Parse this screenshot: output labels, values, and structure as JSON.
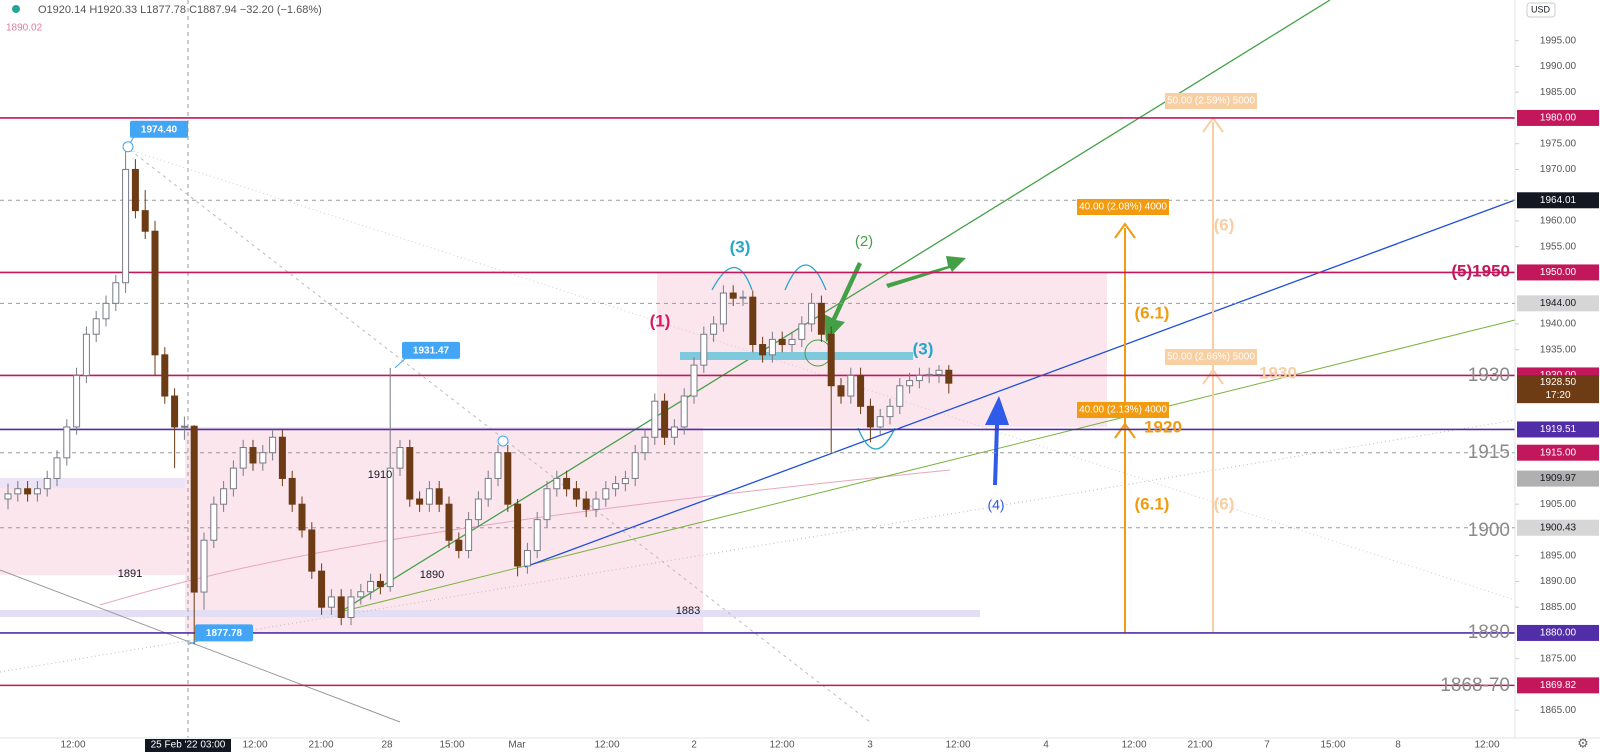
{
  "chart_data": {
    "type": "candlestick",
    "header": {
      "ohlc": "O1920.14 H1920.33 L1877.78 C1887.94 −32.20 (−1.68%)",
      "ma": "1890.02",
      "currency": "USD"
    },
    "ylim": [
      1859.6,
      2002.9
    ],
    "yticks": [
      {
        "value": 1995,
        "label": "1995.00"
      },
      {
        "value": 1990,
        "label": "1990.00"
      },
      {
        "value": 1985,
        "label": "1985.00"
      },
      {
        "value": 1975,
        "label": "1975.00"
      },
      {
        "value": 1970,
        "label": "1970.00"
      },
      {
        "value": 1960,
        "label": "1960.00"
      },
      {
        "value": 1955,
        "label": "1955.00"
      },
      {
        "value": 1940,
        "label": "1940.00"
      },
      {
        "value": 1935,
        "label": "1935.00"
      },
      {
        "value": 1905,
        "label": "1905.00"
      },
      {
        "value": 1895,
        "label": "1895.00"
      },
      {
        "value": 1890,
        "label": "1890.00"
      },
      {
        "value": 1885,
        "label": "1885.00"
      },
      {
        "value": 1875,
        "label": "1875.00"
      },
      {
        "value": 1865,
        "label": "1865.00"
      }
    ],
    "up_color": "#ffffff",
    "down_color": "#6d3b14",
    "ohlc": [
      [
        1906,
        1909,
        1904,
        1907
      ],
      [
        1907,
        1909.5,
        1905.5,
        1908
      ],
      [
        1908,
        1909.5,
        1905.5,
        1907
      ],
      [
        1907,
        1909.5,
        1905.5,
        1908
      ],
      [
        1908,
        1911.5,
        1906.5,
        1910
      ],
      [
        1910,
        1915.5,
        1908.5,
        1914
      ],
      [
        1914,
        1921.5,
        1912.5,
        1920
      ],
      [
        1920,
        1931.5,
        1918.5,
        1930
      ],
      [
        1930,
        1939.5,
        1928.5,
        1938
      ],
      [
        1938,
        1942.5,
        1936.5,
        1941
      ],
      [
        1941,
        1945.5,
        1939.5,
        1944
      ],
      [
        1944,
        1949.5,
        1942.5,
        1948
      ],
      [
        1948,
        1974.4,
        1946,
        1970
      ],
      [
        1970,
        1972,
        1960.5,
        1962
      ],
      [
        1962,
        1966,
        1956.5,
        1958
      ],
      [
        1958,
        1960,
        1930,
        1934
      ],
      [
        1934,
        1935.5,
        1924.5,
        1926
      ],
      [
        1926,
        1927.5,
        1912,
        1920
      ],
      [
        1920,
        1922,
        1917.5,
        1920.14
      ],
      [
        1920.14,
        1920.33,
        1877.78,
        1887.94
      ],
      [
        1887.94,
        1899.5,
        1884.5,
        1898
      ],
      [
        1898,
        1906.5,
        1896.5,
        1905
      ],
      [
        1905,
        1909.5,
        1903.5,
        1908
      ],
      [
        1908,
        1913.5,
        1906.5,
        1912
      ],
      [
        1912,
        1917.5,
        1910.5,
        1916
      ],
      [
        1916,
        1917.5,
        1911.5,
        1913
      ],
      [
        1913,
        1916.5,
        1911.5,
        1915
      ],
      [
        1915,
        1919.5,
        1913.5,
        1918
      ],
      [
        1918,
        1919.5,
        1908.5,
        1910
      ],
      [
        1910,
        1911.5,
        1903.5,
        1905
      ],
      [
        1905,
        1906.5,
        1898.5,
        1900
      ],
      [
        1900,
        1901.5,
        1890.5,
        1892
      ],
      [
        1892,
        1893.5,
        1883.5,
        1885
      ],
      [
        1885,
        1888.5,
        1883.5,
        1887
      ],
      [
        1887,
        1888.5,
        1881.5,
        1883
      ],
      [
        1883,
        1888.5,
        1881.5,
        1887
      ],
      [
        1887,
        1889.5,
        1885.5,
        1888
      ],
      [
        1888,
        1891.5,
        1886.5,
        1890
      ],
      [
        1890,
        1891.5,
        1887.5,
        1889
      ],
      [
        1889,
        1931.47,
        1888,
        1912
      ],
      [
        1912,
        1917.5,
        1910.5,
        1916
      ],
      [
        1916,
        1917.5,
        1904.5,
        1906
      ],
      [
        1906,
        1907.5,
        1903.5,
        1905
      ],
      [
        1905,
        1909.5,
        1903.5,
        1908
      ],
      [
        1908,
        1909.5,
        1903.5,
        1905
      ],
      [
        1905,
        1906.5,
        1896.5,
        1898
      ],
      [
        1898,
        1899.5,
        1894.5,
        1896
      ],
      [
        1896,
        1903.5,
        1894.5,
        1902
      ],
      [
        1902,
        1907.5,
        1900.5,
        1906
      ],
      [
        1906,
        1911.5,
        1904.5,
        1910
      ],
      [
        1910,
        1916.5,
        1908.5,
        1915
      ],
      [
        1915,
        1916.5,
        1903.5,
        1905
      ],
      [
        1905,
        1906,
        1891,
        1893
      ],
      [
        1893,
        1897.5,
        1891.5,
        1896
      ],
      [
        1896,
        1903.5,
        1894.5,
        1902
      ],
      [
        1902,
        1909.5,
        1900.5,
        1908
      ],
      [
        1908,
        1911.5,
        1906.5,
        1910
      ],
      [
        1910,
        1911.5,
        1906.5,
        1908
      ],
      [
        1908,
        1909.5,
        1904.5,
        1906
      ],
      [
        1906,
        1907.5,
        1902.5,
        1904
      ],
      [
        1904,
        1907.5,
        1902.5,
        1906
      ],
      [
        1906,
        1909.5,
        1904.5,
        1908
      ],
      [
        1908,
        1910.5,
        1906.5,
        1909
      ],
      [
        1909,
        1911.5,
        1907.5,
        1910
      ],
      [
        1910,
        1916.5,
        1908.5,
        1915
      ],
      [
        1915,
        1919.5,
        1913.5,
        1918
      ],
      [
        1918,
        1926.5,
        1916.5,
        1925
      ],
      [
        1925,
        1926.5,
        1916.5,
        1918
      ],
      [
        1918,
        1921.5,
        1916.5,
        1920
      ],
      [
        1920,
        1927.5,
        1918.5,
        1926
      ],
      [
        1926,
        1933.5,
        1924.5,
        1932
      ],
      [
        1932,
        1939.5,
        1930.5,
        1938
      ],
      [
        1938,
        1941.5,
        1936.5,
        1940
      ],
      [
        1940,
        1947.5,
        1938.5,
        1946
      ],
      [
        1946,
        1947.5,
        1943.5,
        1945
      ],
      [
        1945,
        1946.5,
        1943.5,
        1945.2
      ],
      [
        1945.2,
        1946.5,
        1934.5,
        1936
      ],
      [
        1936,
        1937.5,
        1932.5,
        1934
      ],
      [
        1934,
        1938.5,
        1932.5,
        1937
      ],
      [
        1937,
        1938.5,
        1934.5,
        1936
      ],
      [
        1936,
        1938.5,
        1934.5,
        1937
      ],
      [
        1937,
        1941.5,
        1935.5,
        1940
      ],
      [
        1940,
        1946,
        1938.5,
        1944
      ],
      [
        1944,
        1945.5,
        1936.5,
        1938
      ],
      [
        1938,
        1939.5,
        1915,
        1928
      ],
      [
        1928,
        1929.5,
        1924.5,
        1926
      ],
      [
        1926,
        1931.5,
        1924.5,
        1930
      ],
      [
        1930,
        1931.5,
        1922.5,
        1924
      ],
      [
        1924,
        1925.5,
        1917,
        1920
      ],
      [
        1920,
        1923.5,
        1918.5,
        1922
      ],
      [
        1922,
        1925.5,
        1920.5,
        1924
      ],
      [
        1924,
        1929.5,
        1922.5,
        1928
      ],
      [
        1928,
        1930.5,
        1926.5,
        1929
      ],
      [
        1929,
        1931.5,
        1927.5,
        1930
      ],
      [
        1930,
        1931.5,
        1928.5,
        1930.2
      ],
      [
        1930.2,
        1932,
        1928.5,
        1931
      ],
      [
        1931,
        1932,
        1926.5,
        1928.5
      ]
    ],
    "time_labels": [
      "12:00",
      "25 Feb '22  03:00",
      "12:00",
      "21:00",
      "28",
      "15:00",
      "Mar",
      "12:00",
      "2",
      "12:00",
      "3",
      "12:00",
      "4",
      "12:00",
      "21:00",
      "7",
      "15:00",
      "8",
      "12:00"
    ],
    "levels": [
      {
        "value": 1980,
        "label": "1980.00",
        "color": "#c2185b",
        "line": "solid"
      },
      {
        "value": 1964.01,
        "label": "1964.01",
        "color": "#131722",
        "line": "dashed"
      },
      {
        "value": 1950,
        "label": "1950.00",
        "color": "#c2185b",
        "line": "solid"
      },
      {
        "value": 1944,
        "label": "1944.00",
        "color": "#d6d6d6",
        "line": "dashed"
      },
      {
        "value": 1930,
        "label": "1930.00",
        "color": "#c2185b",
        "line": "solid"
      },
      {
        "value": 1919.51,
        "label": "1919.51",
        "color": "#512da8",
        "line": "solid"
      },
      {
        "value": 1915,
        "label": "1915.00",
        "color": "#c2185b",
        "line": "dashed"
      },
      {
        "value": 1909.97,
        "label": "1909.97",
        "color": "#b0b0b0",
        "line": "none"
      },
      {
        "value": 1900.43,
        "label": "1900.43",
        "color": "#d6d6d6",
        "line": "dashed"
      },
      {
        "value": 1880,
        "label": "1880.00",
        "color": "#512da8",
        "line": "solid"
      },
      {
        "value": 1869.82,
        "label": "1869.82",
        "color": "#c2185b",
        "line": "solid"
      }
    ],
    "last_price": {
      "value": 1928.5,
      "label": "1928.50",
      "countdown": "17:20"
    },
    "callouts": [
      {
        "value": 1974.4,
        "label": "1974.40"
      },
      {
        "value": 1931.47,
        "label": "1931.47"
      },
      {
        "value": 1877.78,
        "label": "1877.78"
      }
    ],
    "positions": [
      "50.00 (2.59%) 5000",
      "40.00 (2.08%) 4000",
      "50.00 (2.66%) 5000",
      "40.00 (2.13%) 4000"
    ],
    "annotations": {
      "wave1": "(1)",
      "wave2": "(2)",
      "wave3a": "(3)",
      "wave3b": "(3)",
      "wave4": "(4)",
      "wave5": "(5)1950",
      "w61a": "(6.1)",
      "w61b": "(6.1)",
      "w6a": "(6)",
      "w6b": "(6)",
      "t1930": "1930",
      "t1920": "1920",
      "r1930": "1930",
      "r1915": "1915",
      "r1900": "1900",
      "r1880": "1880",
      "r1868": "1868-70",
      "n1910": "1910",
      "n1891": "1891",
      "n1890": "1890",
      "n1883": "1883"
    }
  }
}
